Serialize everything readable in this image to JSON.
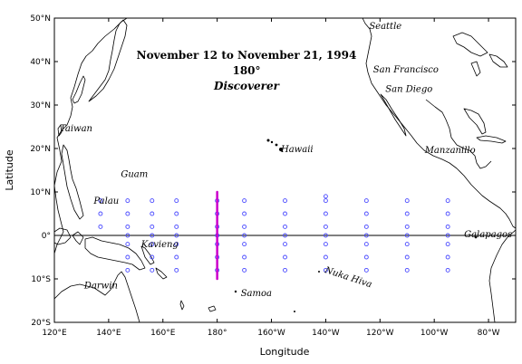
{
  "header": {
    "date_range": "November 12 to November 21, 1994",
    "longitude": "180°",
    "vessel": "Discoverer"
  },
  "axes": {
    "xlabel": "Longitude",
    "ylabel": "Latitude",
    "x_ticks": [
      {
        "value": 120,
        "label": "120°E"
      },
      {
        "value": 140,
        "label": "140°E"
      },
      {
        "value": 160,
        "label": "160°E"
      },
      {
        "value": 180,
        "label": "180°"
      },
      {
        "value": 200,
        "label": "160°W"
      },
      {
        "value": 220,
        "label": "140°W"
      },
      {
        "value": 240,
        "label": "120°W"
      },
      {
        "value": 260,
        "label": "100°W"
      },
      {
        "value": 280,
        "label": "80°W"
      }
    ],
    "y_ticks": [
      {
        "value": 50,
        "label": "50°N"
      },
      {
        "value": 40,
        "label": "40°N"
      },
      {
        "value": 30,
        "label": "30°N"
      },
      {
        "value": 20,
        "label": "20°N"
      },
      {
        "value": 10,
        "label": "10°N"
      },
      {
        "value": 0,
        "label": "0°"
      },
      {
        "value": -10,
        "label": "10°S"
      },
      {
        "value": -20,
        "label": "20°S"
      }
    ],
    "xlim_deg_east": [
      120,
      290
    ],
    "ylim_deg": [
      -20,
      50
    ]
  },
  "places": [
    {
      "name": "Seattle",
      "lon": 236,
      "lat": 47.5
    },
    {
      "name": "San Francisco",
      "lon": 237.5,
      "lat": 37.5
    },
    {
      "name": "San Diego",
      "lon": 242,
      "lat": 33
    },
    {
      "name": "Taiwan",
      "lon": 122,
      "lat": 24
    },
    {
      "name": "Hawaii",
      "lon": 203.5,
      "lat": 19.2
    },
    {
      "name": "Manzanillo",
      "lon": 256.5,
      "lat": 19
    },
    {
      "name": "Guam",
      "lon": 144.5,
      "lat": 13.4
    },
    {
      "name": "Palau",
      "lon": 134.5,
      "lat": 7.3
    },
    {
      "name": "Kavieng",
      "lon": 152,
      "lat": -2.7
    },
    {
      "name": "Galapagos",
      "lon": 271,
      "lat": -0.4
    },
    {
      "name": "Darwin",
      "lon": 131,
      "lat": -12.2
    },
    {
      "name": "Samoa",
      "lon": 188.7,
      "lat": -14
    },
    {
      "name": "Nuka Hiva",
      "lon": 219.5,
      "lat": -8.5
    }
  ],
  "chart_data": {
    "type": "scatter",
    "title": "November 12 to November 21, 1994",
    "xlabel": "Longitude",
    "ylabel": "Latitude",
    "xlim": [
      120,
      290
    ],
    "ylim": [
      -20,
      50
    ],
    "grid": false,
    "buoy_array": {
      "color": "#4a4aff",
      "lons": [
        137,
        147,
        156,
        165,
        180,
        190,
        205,
        220,
        235,
        250,
        265
      ],
      "lats": [
        8,
        5,
        2,
        0,
        -2,
        -5,
        -8
      ],
      "extra": [
        {
          "lon": 137,
          "lat": 5
        },
        {
          "lon": 137,
          "lat": 2
        },
        {
          "lon": 220,
          "lat": 9
        }
      ]
    },
    "cruise_track": {
      "color": "#cc00cc",
      "lon": 180,
      "lat_start": 10,
      "lat_end": -10
    }
  },
  "colors": {
    "buoy": "#4a4aff",
    "track": "#cc00cc",
    "coast": "#000000"
  }
}
